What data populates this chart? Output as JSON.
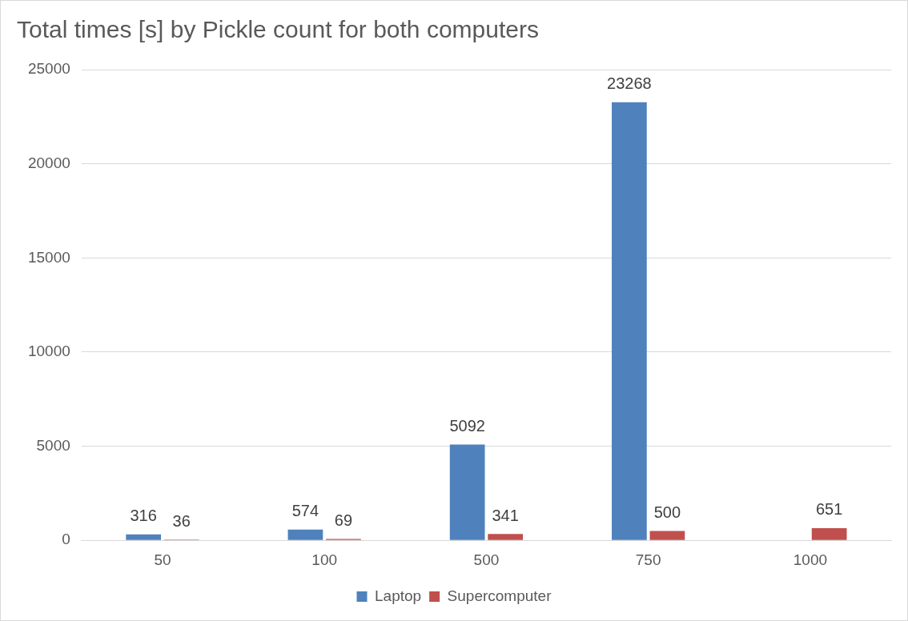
{
  "chart_data": {
    "type": "bar",
    "title": "Total times [s] by Pickle count for both computers",
    "categories": [
      "50",
      "100",
      "500",
      "750",
      "1000"
    ],
    "series": [
      {
        "name": "Laptop",
        "color": "#4f81bd",
        "values": [
          316,
          574,
          5092,
          23268,
          null
        ]
      },
      {
        "name": "Supercomputer",
        "color": "#c0504d",
        "values": [
          36,
          69,
          341,
          500,
          651
        ]
      }
    ],
    "ylim": [
      0,
      25000
    ],
    "yticks": [
      0,
      5000,
      10000,
      15000,
      20000,
      25000
    ],
    "grid": "y",
    "legend": "bottom",
    "data_labels": true
  }
}
